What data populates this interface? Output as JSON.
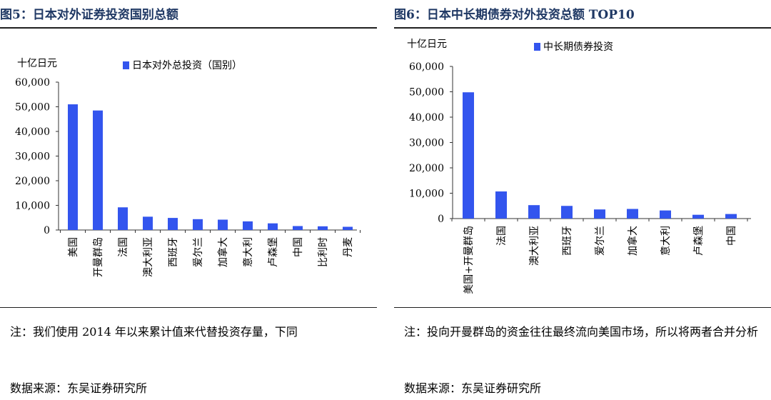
{
  "figures": [
    {
      "title": "图5：日本对外证券投资国别总额",
      "note": "注：我们使用 2014 年以来累计值来代替投资存量，下同",
      "source": "数据来源：东吴证券研究所"
    },
    {
      "title": "图6：日本中长期债券对外投资总额 TOP10",
      "note": "注：投向开曼群岛的资金往往最终流向美国市场，所以将两者合并分析",
      "source": "数据来源：东吴证券研究所"
    }
  ],
  "chart_data": [
    {
      "type": "bar",
      "unit_label": "十亿日元",
      "categories": [
        "美国",
        "开曼群岛",
        "法国",
        "澳大利亚",
        "西班牙",
        "爱尔兰",
        "加拿大",
        "意大利",
        "卢森堡",
        "中国",
        "比利时",
        "丹麦"
      ],
      "series": [
        {
          "name": "日本对外总投资（国别）",
          "values": [
            51000,
            48500,
            9200,
            5400,
            4900,
            4400,
            4200,
            3500,
            2700,
            1600,
            1500,
            1300
          ]
        }
      ],
      "ylim": [
        0,
        60000
      ],
      "yticks": [
        "0",
        "10,000",
        "20,000",
        "30,000",
        "40,000",
        "50,000",
        "60,000"
      ],
      "color": "#3355ee",
      "legend_position": "top"
    },
    {
      "type": "bar",
      "unit_label": "十亿日元",
      "categories": [
        "美国+开曼群岛",
        "法国",
        "澳大利亚",
        "西班牙",
        "爱尔兰",
        "加拿大",
        "意大利",
        "卢森堡",
        "中国"
      ],
      "series": [
        {
          "name": "中长期债券投资",
          "values": [
            49800,
            10700,
            5300,
            5000,
            3600,
            3800,
            3200,
            1500,
            1800
          ]
        }
      ],
      "ylim": [
        0,
        60000
      ],
      "yticks": [
        "0",
        "10,000",
        "20,000",
        "30,000",
        "40,000",
        "50,000",
        "60,000"
      ],
      "color": "#3355ee",
      "legend_position": "top"
    }
  ]
}
